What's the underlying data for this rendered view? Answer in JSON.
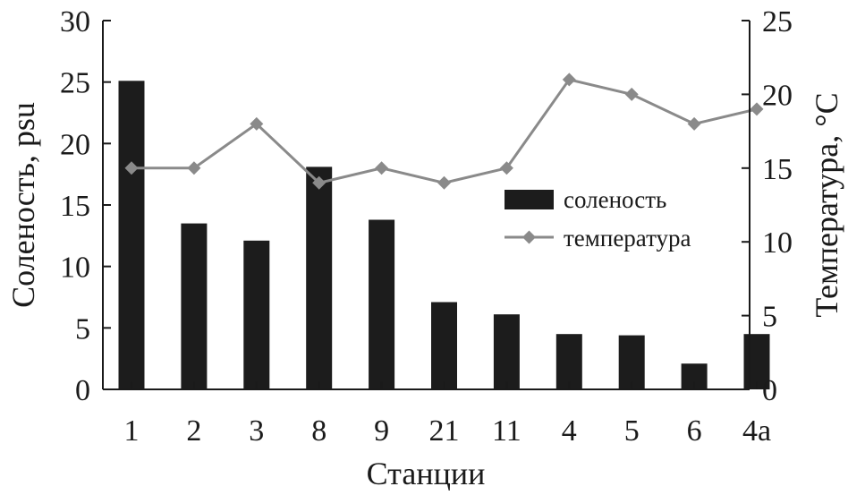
{
  "chart_data": {
    "type": "bar",
    "categories": [
      "1",
      "2",
      "3",
      "8",
      "9",
      "21",
      "11",
      "4",
      "5",
      "6",
      "4a"
    ],
    "series": [
      {
        "name": "соленость",
        "type": "bar",
        "axis": "left",
        "values": [
          25.1,
          13.5,
          12.1,
          18.1,
          13.8,
          7.1,
          6.1,
          4.5,
          4.4,
          2.1,
          4.5
        ],
        "color": "#1c1c1c"
      },
      {
        "name": "температура",
        "type": "line",
        "axis": "right",
        "values": [
          15,
          15,
          18,
          14,
          15,
          14,
          15,
          21,
          20,
          18,
          19
        ],
        "color": "#8a8a8a",
        "marker": "diamond"
      }
    ],
    "xlabel": "Станции",
    "ylabel": "Соленость, psu",
    "ylabel_right": "Температура, °C",
    "ylim": [
      0,
      30
    ],
    "ylim_right": [
      0,
      25
    ],
    "yticks": [
      0,
      5,
      10,
      15,
      20,
      25,
      30
    ],
    "yticks_right": [
      0,
      5,
      10,
      15,
      20,
      25
    ],
    "grid": false,
    "legend_position": "center-right"
  }
}
